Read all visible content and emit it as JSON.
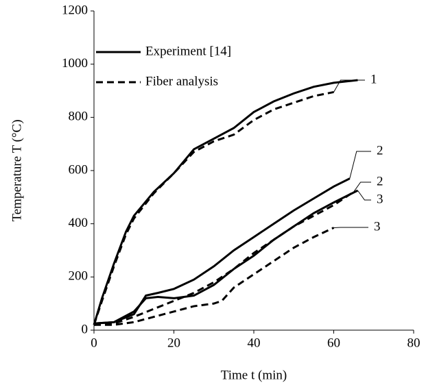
{
  "chart_data": {
    "type": "line",
    "x_label": "Time t (min)",
    "y_label": "Temperature T (°C)",
    "xlim": [
      0,
      80
    ],
    "xticks": [
      0,
      20,
      40,
      60,
      80
    ],
    "ylim": [
      0,
      1200
    ],
    "yticks": [
      0,
      200,
      400,
      600,
      800,
      1000,
      1200
    ],
    "grid": false,
    "legend_position": "upper left",
    "legend": [
      {
        "name": "Experiment [14]",
        "style": "solid"
      },
      {
        "name": "Fiber analysis",
        "style": "dashed"
      }
    ],
    "series": [
      {
        "label": "1",
        "style": "solid",
        "color": "#000000",
        "x": [
          0,
          2,
          5,
          8,
          10,
          15,
          20,
          25,
          30,
          35,
          40,
          45,
          50,
          55,
          60,
          66
        ],
        "values": [
          20,
          120,
          250,
          370,
          430,
          520,
          590,
          680,
          720,
          760,
          820,
          860,
          890,
          915,
          930,
          940
        ]
      },
      {
        "label": "1",
        "style": "dashed",
        "color": "#000000",
        "x": [
          0,
          2,
          5,
          8,
          10,
          15,
          20,
          25,
          30,
          35,
          40,
          45,
          50,
          55,
          60
        ],
        "values": [
          20,
          110,
          240,
          360,
          420,
          515,
          590,
          670,
          710,
          735,
          790,
          830,
          855,
          880,
          895
        ]
      },
      {
        "label": "2",
        "style": "solid",
        "color": "#000000",
        "x": [
          0,
          5,
          10,
          13,
          16,
          20,
          25,
          30,
          35,
          40,
          45,
          50,
          55,
          60,
          64
        ],
        "values": [
          25,
          30,
          60,
          130,
          140,
          155,
          190,
          240,
          300,
          350,
          400,
          450,
          495,
          540,
          570
        ]
      },
      {
        "label": "2",
        "style": "dashed",
        "color": "#000000",
        "x": [
          0,
          5,
          10,
          15,
          20,
          25,
          30,
          35,
          40,
          45,
          50,
          55,
          60,
          65
        ],
        "values": [
          20,
          25,
          50,
          80,
          110,
          140,
          180,
          230,
          290,
          340,
          390,
          430,
          470,
          520
        ]
      },
      {
        "label": "3",
        "style": "solid",
        "color": "#000000",
        "x": [
          0,
          5,
          10,
          13,
          16,
          20,
          25,
          30,
          35,
          40,
          45,
          50,
          55,
          60,
          66
        ],
        "values": [
          25,
          30,
          70,
          120,
          125,
          120,
          130,
          170,
          230,
          280,
          340,
          390,
          440,
          480,
          525
        ]
      },
      {
        "label": "3",
        "style": "dashed",
        "color": "#000000",
        "x": [
          0,
          5,
          10,
          15,
          20,
          25,
          30,
          32,
          35,
          40,
          45,
          50,
          55,
          60
        ],
        "values": [
          20,
          20,
          30,
          50,
          70,
          90,
          100,
          110,
          160,
          210,
          260,
          310,
          350,
          385
        ]
      }
    ]
  }
}
